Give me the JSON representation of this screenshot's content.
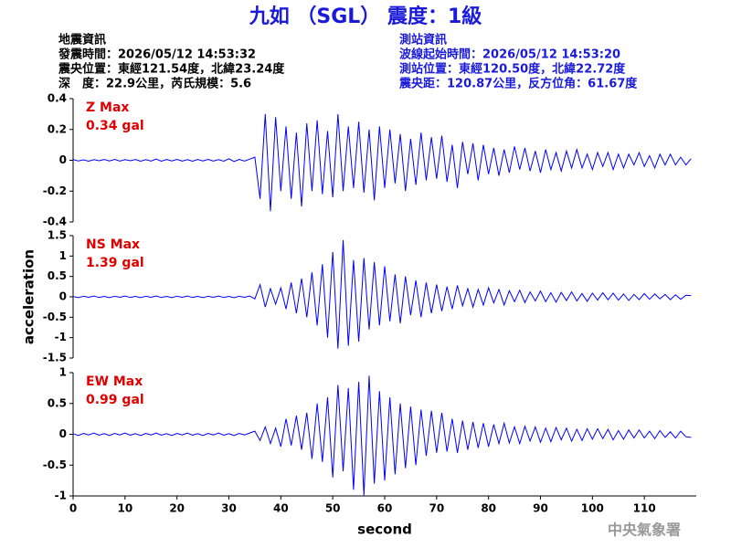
{
  "header": {
    "title": "九如 （SGL） 震度：1級",
    "left": [
      "地震資訊",
      "發震時間：2026/05/12 14:53:32",
      "震央位置：東經121.54度，北緯23.24度",
      "深　度：22.9公里，芮氏規模：5.6"
    ],
    "right": [
      "測站資訊",
      "波線起始時間：2026/05/12 14:53:20",
      "測站位置：東經120.50度，北緯22.72度",
      "震央距：120.87公里，反方位角：61.67度"
    ]
  },
  "footer": "中央氣象署",
  "chart_data": [
    {
      "type": "line",
      "annotations": [
        "Z Max",
        "0.34 gal"
      ],
      "color": "#0000ff",
      "xlim": [
        0,
        120
      ],
      "ylim": [
        -0.4,
        0.4
      ],
      "yticks": [
        -0.4,
        -0.2,
        0,
        0.2,
        0.4
      ],
      "x": [
        0,
        1,
        2,
        3,
        4,
        5,
        6,
        7,
        8,
        9,
        10,
        11,
        12,
        13,
        14,
        15,
        16,
        17,
        18,
        19,
        20,
        21,
        22,
        23,
        24,
        25,
        26,
        27,
        28,
        29,
        30,
        31,
        32,
        33,
        34,
        35,
        36,
        37,
        38,
        39,
        40,
        41,
        42,
        43,
        44,
        45,
        46,
        47,
        48,
        49,
        50,
        51,
        52,
        53,
        54,
        55,
        56,
        57,
        58,
        59,
        60,
        61,
        62,
        63,
        64,
        65,
        66,
        67,
        68,
        69,
        70,
        71,
        72,
        73,
        74,
        75,
        76,
        77,
        78,
        79,
        80,
        81,
        82,
        83,
        84,
        85,
        86,
        87,
        88,
        89,
        90,
        91,
        92,
        93,
        94,
        95,
        96,
        97,
        98,
        99,
        100,
        101,
        102,
        103,
        104,
        105,
        106,
        107,
        108,
        109,
        110,
        111,
        112,
        113,
        114,
        115,
        116,
        117,
        118,
        119
      ],
      "values": [
        0.005,
        -0.004,
        0.003,
        -0.006,
        0.004,
        -0.003,
        0.005,
        -0.004,
        0.006,
        -0.005,
        0.004,
        -0.003,
        0.005,
        -0.006,
        0.004,
        -0.005,
        0.008,
        -0.006,
        0.005,
        -0.004,
        0.006,
        -0.005,
        0.004,
        -0.006,
        0.005,
        -0.004,
        0.006,
        -0.005,
        0.004,
        -0.006,
        0.01,
        -0.008,
        0.006,
        -0.005,
        0.007,
        0.02,
        -0.25,
        0.3,
        -0.33,
        0.28,
        -0.2,
        0.22,
        -0.25,
        0.18,
        -0.3,
        0.24,
        -0.2,
        0.26,
        -0.22,
        0.19,
        -0.24,
        0.3,
        -0.2,
        0.22,
        -0.18,
        0.25,
        -0.21,
        0.2,
        -0.26,
        0.22,
        -0.18,
        0.2,
        -0.15,
        0.17,
        -0.2,
        0.14,
        -0.16,
        0.18,
        -0.13,
        0.15,
        -0.12,
        0.16,
        -0.14,
        0.1,
        -0.18,
        0.12,
        -0.09,
        0.11,
        -0.13,
        0.1,
        -0.09,
        0.08,
        -0.1,
        0.07,
        -0.08,
        0.09,
        -0.06,
        0.08,
        -0.07,
        0.06,
        -0.08,
        0.07,
        -0.06,
        0.05,
        -0.07,
        0.06,
        -0.05,
        0.07,
        -0.05,
        0.04,
        -0.06,
        0.05,
        -0.04,
        0.05,
        -0.06,
        0.04,
        -0.05,
        0.04,
        -0.03,
        0.05,
        -0.04,
        0.03,
        -0.05,
        0.04,
        -0.03,
        0.04,
        -0.03,
        0.02,
        -0.03,
        0.01
      ]
    },
    {
      "type": "line",
      "annotations": [
        "NS Max",
        "1.39 gal"
      ],
      "y_label": "acceleration",
      "color": "#0000ff",
      "xlim": [
        0,
        120
      ],
      "ylim": [
        -1.5,
        1.5
      ],
      "yticks": [
        -1.5,
        -1,
        -0.5,
        0,
        0.5,
        1,
        1.5
      ],
      "x": [
        0,
        1,
        2,
        3,
        4,
        5,
        6,
        7,
        8,
        9,
        10,
        11,
        12,
        13,
        14,
        15,
        16,
        17,
        18,
        19,
        20,
        21,
        22,
        23,
        24,
        25,
        26,
        27,
        28,
        29,
        30,
        31,
        32,
        33,
        34,
        35,
        36,
        37,
        38,
        39,
        40,
        41,
        42,
        43,
        44,
        45,
        46,
        47,
        48,
        49,
        50,
        51,
        52,
        53,
        54,
        55,
        56,
        57,
        58,
        59,
        60,
        61,
        62,
        63,
        64,
        65,
        66,
        67,
        68,
        69,
        70,
        71,
        72,
        73,
        74,
        75,
        76,
        77,
        78,
        79,
        80,
        81,
        82,
        83,
        84,
        85,
        86,
        87,
        88,
        89,
        90,
        91,
        92,
        93,
        94,
        95,
        96,
        97,
        98,
        99,
        100,
        101,
        102,
        103,
        104,
        105,
        106,
        107,
        108,
        109,
        110,
        111,
        112,
        113,
        114,
        115,
        116,
        117,
        118,
        119
      ],
      "values": [
        0.01,
        -0.02,
        0.015,
        -0.01,
        0.02,
        -0.015,
        0.01,
        -0.02,
        0.015,
        -0.01,
        0.02,
        -0.015,
        0.01,
        -0.02,
        0.015,
        -0.01,
        0.02,
        -0.015,
        0.01,
        -0.02,
        0.015,
        -0.01,
        0.02,
        -0.015,
        0.01,
        -0.02,
        0.015,
        -0.01,
        0.02,
        -0.015,
        0.01,
        -0.02,
        0.015,
        -0.01,
        0.02,
        -0.05,
        0.3,
        -0.25,
        0.2,
        -0.18,
        0.22,
        -0.3,
        0.35,
        -0.4,
        0.45,
        -0.5,
        0.6,
        -0.7,
        0.8,
        -1.0,
        1.1,
        -1.27,
        1.39,
        -1.2,
        0.9,
        -1.1,
        0.95,
        -0.8,
        0.85,
        -0.7,
        0.75,
        -0.6,
        0.55,
        -0.65,
        0.5,
        -0.45,
        0.4,
        -0.5,
        0.35,
        -0.4,
        0.3,
        -0.35,
        0.25,
        -0.3,
        0.28,
        -0.22,
        0.2,
        -0.25,
        0.18,
        -0.2,
        0.22,
        -0.15,
        0.18,
        -0.2,
        0.15,
        -0.12,
        0.16,
        -0.14,
        0.12,
        -0.1,
        0.14,
        -0.12,
        0.1,
        -0.13,
        0.11,
        -0.09,
        0.12,
        -0.1,
        0.08,
        -0.11,
        0.09,
        -0.08,
        0.1,
        -0.07,
        0.09,
        -0.08,
        0.07,
        -0.09,
        0.06,
        -0.07,
        0.08,
        -0.06,
        0.07,
        -0.05,
        0.06,
        -0.07,
        0.05,
        -0.06,
        0.04,
        0.03
      ]
    },
    {
      "type": "line",
      "annotations": [
        "EW Max",
        "0.99 gal"
      ],
      "x_label": "second",
      "color": "#0000ff",
      "xlim": [
        0,
        120
      ],
      "ylim": [
        -1,
        1
      ],
      "yticks": [
        -1,
        -0.5,
        0,
        0.5,
        1
      ],
      "xticks": [
        0,
        10,
        20,
        30,
        40,
        50,
        60,
        70,
        80,
        90,
        100,
        110
      ],
      "x": [
        0,
        1,
        2,
        3,
        4,
        5,
        6,
        7,
        8,
        9,
        10,
        11,
        12,
        13,
        14,
        15,
        16,
        17,
        18,
        19,
        20,
        21,
        22,
        23,
        24,
        25,
        26,
        27,
        28,
        29,
        30,
        31,
        32,
        33,
        34,
        35,
        36,
        37,
        38,
        39,
        40,
        41,
        42,
        43,
        44,
        45,
        46,
        47,
        48,
        49,
        50,
        51,
        52,
        53,
        54,
        55,
        56,
        57,
        58,
        59,
        60,
        61,
        62,
        63,
        64,
        65,
        66,
        67,
        68,
        69,
        70,
        71,
        72,
        73,
        74,
        75,
        76,
        77,
        78,
        79,
        80,
        81,
        82,
        83,
        84,
        85,
        86,
        87,
        88,
        89,
        90,
        91,
        92,
        93,
        94,
        95,
        96,
        97,
        98,
        99,
        100,
        101,
        102,
        103,
        104,
        105,
        106,
        107,
        108,
        109,
        110,
        111,
        112,
        113,
        114,
        115,
        116,
        117,
        118,
        119
      ],
      "values": [
        0.01,
        -0.02,
        0.015,
        -0.01,
        0.02,
        -0.015,
        0.01,
        -0.02,
        0.015,
        -0.01,
        0.02,
        -0.015,
        0.01,
        -0.02,
        0.015,
        -0.01,
        0.02,
        -0.015,
        0.01,
        -0.02,
        0.015,
        -0.01,
        0.02,
        -0.015,
        0.01,
        -0.02,
        0.015,
        -0.01,
        0.02,
        -0.015,
        0.01,
        -0.02,
        0.015,
        -0.01,
        0.02,
        0.05,
        -0.1,
        0.12,
        -0.15,
        0.1,
        -0.2,
        0.25,
        -0.18,
        0.3,
        -0.25,
        0.35,
        -0.4,
        0.5,
        -0.45,
        0.6,
        -0.7,
        0.8,
        -0.6,
        0.75,
        -0.9,
        0.85,
        -0.99,
        0.95,
        -0.8,
        0.7,
        -0.75,
        0.6,
        -0.65,
        0.5,
        -0.55,
        0.45,
        -0.5,
        0.4,
        -0.35,
        0.38,
        -0.3,
        0.35,
        -0.28,
        0.25,
        -0.3,
        0.22,
        -0.25,
        0.2,
        -0.22,
        0.18,
        -0.2,
        0.16,
        -0.15,
        0.18,
        -0.14,
        0.12,
        -0.15,
        0.13,
        -0.11,
        0.12,
        -0.13,
        0.1,
        -0.12,
        0.11,
        -0.09,
        0.1,
        -0.11,
        0.08,
        -0.1,
        0.09,
        -0.08,
        0.09,
        -0.07,
        0.08,
        -0.09,
        0.06,
        -0.08,
        0.07,
        -0.06,
        0.07,
        -0.06,
        0.05,
        -0.07,
        0.06,
        -0.05,
        0.04,
        -0.06,
        0.05,
        -0.04,
        -0.05
      ]
    }
  ]
}
